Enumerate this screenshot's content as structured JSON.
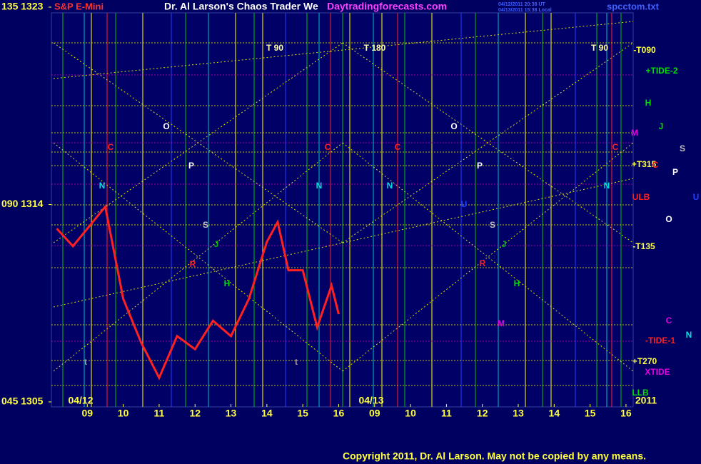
{
  "chart_data": {
    "type": "line",
    "title": "Dr. Al Larson's Chaos Trader We",
    "symbol": "S&P E-Mini",
    "site": "Daytradingforecasts.com",
    "file": "spcctom.txt",
    "stamp1": "04/12/2011 20:38 UT",
    "stamp2": "04/13/2011 15:38 Local",
    "copyright": "Copyright 2011, Dr. Al Larson. May not be copied by any means.",
    "dates": [
      "04/12",
      "04/13",
      "2011"
    ],
    "xlim": [
      0,
      16.2
    ],
    "xticks": [
      {
        "value": 1,
        "label": "09"
      },
      {
        "value": 2,
        "label": "10"
      },
      {
        "value": 3,
        "label": "11"
      },
      {
        "value": 4,
        "label": "12"
      },
      {
        "value": 5,
        "label": "13"
      },
      {
        "value": 6,
        "label": "14"
      },
      {
        "value": 7,
        "label": "15"
      },
      {
        "value": 8,
        "label": "16"
      },
      {
        "value": 9,
        "label": "09"
      },
      {
        "value": 10,
        "label": "10"
      },
      {
        "value": 11,
        "label": "11"
      },
      {
        "value": 12,
        "label": "12"
      },
      {
        "value": 13,
        "label": "13"
      },
      {
        "value": 14,
        "label": "14"
      },
      {
        "value": 15,
        "label": "15"
      },
      {
        "value": 16,
        "label": "16"
      }
    ],
    "ylim": [
      1305,
      1323
    ],
    "yticks": [
      {
        "value": 1305,
        "label": "045  1305"
      },
      {
        "value": 1314,
        "label": "090  1314"
      },
      {
        "value": 1323,
        "label": "135  1323"
      }
    ],
    "x": [
      0.15,
      0.6,
      1.5,
      2,
      2.5,
      3,
      3.5,
      4,
      4.5,
      5,
      5.5,
      6,
      6.3,
      6.6,
      7,
      7.4,
      7.8,
      8
    ],
    "series": [
      {
        "name": "S&P E-Mini",
        "color": "#ff2020",
        "values": [
          1312.9,
          1312.1,
          1313.9,
          1309.7,
          1307.7,
          1306.1,
          1308.0,
          1307.4,
          1308.7,
          1308.0,
          1309.7,
          1312.3,
          1313.2,
          1311.0,
          1311.0,
          1308.4,
          1310.3,
          1309.0
        ]
      }
    ],
    "annotations": [
      "T  90",
      "T  180",
      "T  90",
      "O",
      "C",
      "P",
      "N",
      "S",
      "J",
      "R",
      "H",
      "O",
      "C",
      "P",
      "N",
      "S",
      "J",
      "R",
      "H",
      "M",
      "C",
      "N",
      "C",
      "N",
      "U",
      "t",
      "t",
      "-T090",
      "+TIDE-2",
      "H",
      "J",
      "M",
      "S",
      "+T315",
      "C",
      "P",
      "ULB",
      "U",
      "O",
      "-T135",
      "C",
      "N",
      "-TIDE-1",
      "+T270",
      "XTIDE",
      "LLB"
    ]
  }
}
